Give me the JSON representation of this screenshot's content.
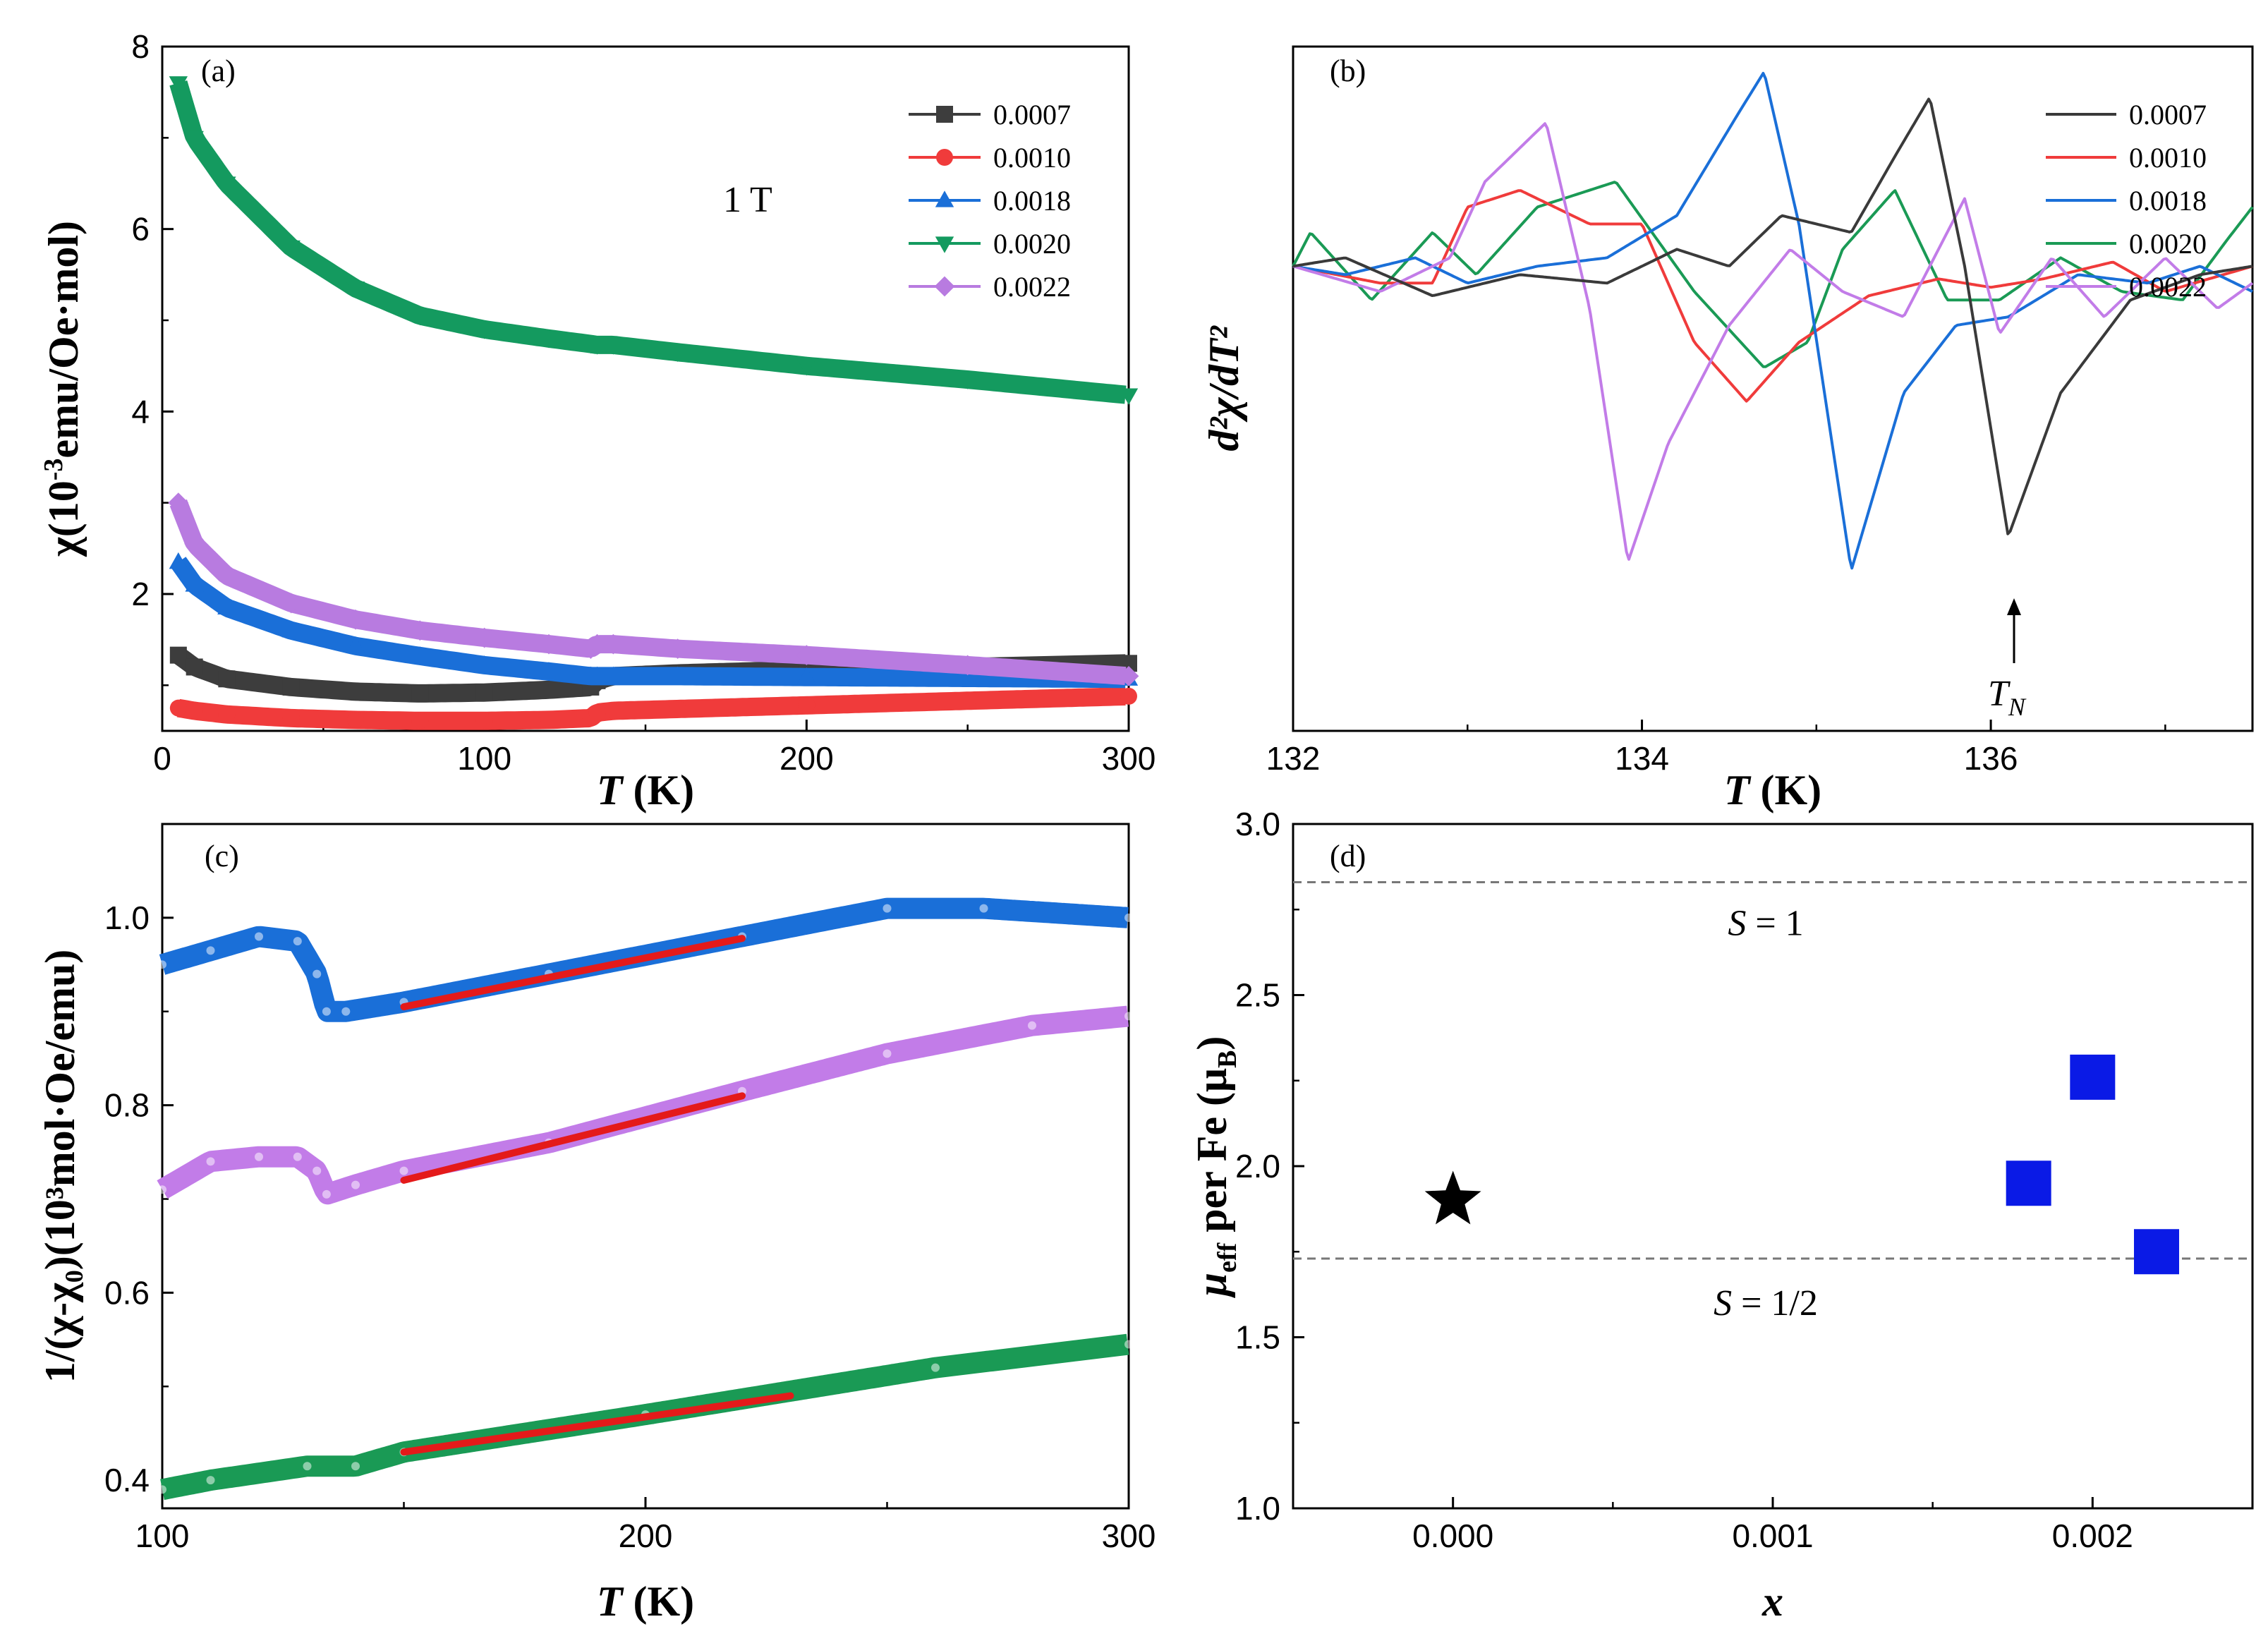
{
  "chart_data": [
    {
      "id": "a",
      "type": "scatter",
      "panel_label": "(a)",
      "annotation": "1 T",
      "xlabel_italic": "T",
      "xlabel_rest": " (K)",
      "ylabel_main": "χ(10",
      "ylabel_sup": "-3",
      "ylabel_tail": "emu/Oe·mol)",
      "xlim": [
        0,
        300
      ],
      "ylim": [
        0.5,
        8
      ],
      "xticks": [
        0,
        100,
        200,
        300
      ],
      "xtick_labels": [
        "0",
        "100",
        "200",
        "300"
      ],
      "yticks": [
        2,
        4,
        6,
        8
      ],
      "ytick_labels": [
        "2",
        "4",
        "6",
        "8"
      ],
      "legend": "top-right",
      "series": [
        {
          "name": "0.0007",
          "color": "#3d3d3d",
          "marker": "square",
          "x": [
            5,
            10,
            20,
            40,
            60,
            80,
            100,
            120,
            133,
            135,
            140,
            160,
            200,
            250,
            300
          ],
          "y": [
            1.33,
            1.2,
            1.07,
            0.98,
            0.93,
            0.91,
            0.92,
            0.95,
            0.98,
            1.05,
            1.1,
            1.13,
            1.17,
            1.2,
            1.24
          ]
        },
        {
          "name": "0.0010",
          "color": "#f03b3b",
          "marker": "circle",
          "x": [
            5,
            10,
            20,
            40,
            60,
            80,
            100,
            120,
            133,
            135,
            140,
            160,
            200,
            250,
            300
          ],
          "y": [
            0.75,
            0.72,
            0.68,
            0.64,
            0.62,
            0.61,
            0.61,
            0.62,
            0.64,
            0.7,
            0.72,
            0.74,
            0.78,
            0.83,
            0.88
          ]
        },
        {
          "name": "0.0018",
          "color": "#1a6fd8",
          "marker": "triangle-up",
          "x": [
            5,
            10,
            20,
            40,
            60,
            80,
            100,
            120,
            133,
            135,
            140,
            160,
            200,
            250,
            300
          ],
          "y": [
            2.35,
            2.1,
            1.85,
            1.6,
            1.43,
            1.32,
            1.22,
            1.15,
            1.1,
            1.1,
            1.1,
            1.1,
            1.09,
            1.08,
            1.07
          ]
        },
        {
          "name": "0.0020",
          "color": "#149a5f",
          "marker": "triangle-down",
          "x": [
            5,
            10,
            20,
            40,
            60,
            80,
            100,
            120,
            133,
            135,
            140,
            160,
            200,
            250,
            300
          ],
          "y": [
            7.6,
            7.0,
            6.5,
            5.8,
            5.35,
            5.05,
            4.9,
            4.8,
            4.74,
            4.73,
            4.73,
            4.65,
            4.5,
            4.35,
            4.18
          ]
        },
        {
          "name": "0.0022",
          "color": "#b87be0",
          "marker": "diamond",
          "x": [
            5,
            10,
            20,
            40,
            60,
            80,
            100,
            120,
            133,
            135,
            140,
            160,
            200,
            250,
            300
          ],
          "y": [
            3.0,
            2.55,
            2.2,
            1.9,
            1.72,
            1.6,
            1.52,
            1.45,
            1.4,
            1.45,
            1.45,
            1.4,
            1.33,
            1.22,
            1.1
          ]
        }
      ]
    },
    {
      "id": "b",
      "type": "line",
      "panel_label": "(b)",
      "annotation": "T",
      "annotation_sub": "N",
      "xlabel_italic": "T",
      "xlabel_rest": " (K)",
      "ylabel": "d²χ/dT²",
      "xlim": [
        132,
        137.5
      ],
      "ylim": [
        -5.5,
        2.6
      ],
      "xticks": [
        132,
        134,
        136
      ],
      "xtick_labels": [
        "132",
        "134",
        "136"
      ],
      "yticks": [],
      "legend": "top-right",
      "series": [
        {
          "name": "0.0007",
          "color": "#3a3a3a",
          "x": [
            132.0,
            132.3,
            132.8,
            133.3,
            133.8,
            134.2,
            134.5,
            134.8,
            135.2,
            135.45,
            135.65,
            135.85,
            136.1,
            136.4,
            136.8,
            137.2,
            137.5
          ],
          "y": [
            0.0,
            0.1,
            -0.35,
            -0.1,
            -0.2,
            0.2,
            0.0,
            0.6,
            0.4,
            1.3,
            2.0,
            0.0,
            -3.2,
            -1.5,
            -0.4,
            -0.1,
            0.0
          ]
        },
        {
          "name": "0.0010",
          "color": "#f03b3b",
          "x": [
            132.0,
            132.5,
            132.8,
            133.0,
            133.3,
            133.7,
            134.0,
            134.3,
            134.6,
            134.9,
            135.3,
            135.7,
            136.0,
            136.3,
            136.7,
            137.0,
            137.5
          ],
          "y": [
            0.0,
            -0.2,
            -0.2,
            0.7,
            0.9,
            0.5,
            0.5,
            -0.9,
            -1.6,
            -0.9,
            -0.35,
            -0.15,
            -0.25,
            -0.15,
            0.05,
            -0.3,
            0.0
          ]
        },
        {
          "name": "0.0018",
          "color": "#1a6fd8",
          "x": [
            132.0,
            132.3,
            132.7,
            133.0,
            133.4,
            133.8,
            134.2,
            134.55,
            134.7,
            134.9,
            135.2,
            135.5,
            135.8,
            136.1,
            136.5,
            136.9,
            137.2,
            137.5
          ],
          "y": [
            0.0,
            -0.1,
            0.1,
            -0.2,
            0.0,
            0.1,
            0.6,
            1.8,
            2.3,
            0.5,
            -3.6,
            -1.5,
            -0.7,
            -0.6,
            -0.1,
            -0.2,
            0.0,
            -0.3
          ]
        },
        {
          "name": "0.0020",
          "color": "#1a9a55",
          "x": [
            132.0,
            132.1,
            132.45,
            132.8,
            133.05,
            133.4,
            133.85,
            134.3,
            134.7,
            134.95,
            135.15,
            135.45,
            135.75,
            136.05,
            136.4,
            136.75,
            137.1,
            137.35,
            137.5
          ],
          "y": [
            0.0,
            0.4,
            -0.4,
            0.4,
            -0.1,
            0.7,
            1.0,
            -0.3,
            -1.2,
            -0.9,
            0.2,
            0.9,
            -0.4,
            -0.4,
            0.1,
            -0.3,
            -0.4,
            0.3,
            0.7
          ]
        },
        {
          "name": "0.0022",
          "color": "#c27ce8",
          "x": [
            132.0,
            132.5,
            132.9,
            133.1,
            133.45,
            133.7,
            133.92,
            134.15,
            134.5,
            134.85,
            135.15,
            135.5,
            135.85,
            136.05,
            136.35,
            136.65,
            137.0,
            137.3,
            137.5
          ],
          "y": [
            0.0,
            -0.3,
            0.1,
            1.0,
            1.7,
            -0.5,
            -3.5,
            -2.1,
            -0.7,
            0.2,
            -0.3,
            -0.6,
            0.8,
            -0.8,
            0.1,
            -0.6,
            0.1,
            -0.5,
            -0.2
          ]
        }
      ]
    },
    {
      "id": "c",
      "type": "scatter",
      "panel_label": "(c)",
      "xlabel_italic": "T",
      "xlabel_rest": " (K)",
      "ylabel": "1/(χ-χ₀)(10³mol·Oe/emu)",
      "xlim": [
        100,
        300
      ],
      "ylim": [
        0.37,
        1.1
      ],
      "xticks": [
        100,
        200,
        300
      ],
      "xtick_labels": [
        "100",
        "200",
        "300"
      ],
      "yticks": [
        0.4,
        0.6,
        0.8,
        1.0
      ],
      "ytick_labels": [
        "0.4",
        "0.6",
        "0.8",
        "1.0"
      ],
      "series": [
        {
          "name": "0.0018",
          "color": "#1a6fd8",
          "x": [
            100,
            110,
            120,
            128,
            132,
            134,
            138,
            150,
            180,
            220,
            250,
            270,
            300
          ],
          "y": [
            0.95,
            0.965,
            0.98,
            0.975,
            0.94,
            0.9,
            0.9,
            0.91,
            0.94,
            0.98,
            1.01,
            1.01,
            1.0
          ]
        },
        {
          "name": "0.0022",
          "color": "#c27ce8",
          "x": [
            100,
            110,
            120,
            128,
            132,
            134,
            140,
            150,
            180,
            220,
            250,
            280,
            300
          ],
          "y": [
            0.71,
            0.74,
            0.745,
            0.745,
            0.73,
            0.705,
            0.715,
            0.73,
            0.76,
            0.815,
            0.855,
            0.885,
            0.895
          ]
        },
        {
          "name": "0.0020",
          "color": "#1a9a55",
          "x": [
            100,
            110,
            130,
            140,
            150,
            200,
            260,
            300
          ],
          "y": [
            0.39,
            0.4,
            0.415,
            0.415,
            0.43,
            0.47,
            0.52,
            0.545
          ]
        }
      ],
      "fits": [
        {
          "color": "#e41a1a",
          "x": [
            150,
            220
          ],
          "y": [
            0.905,
            0.978
          ]
        },
        {
          "color": "#e41a1a",
          "x": [
            150,
            220
          ],
          "y": [
            0.72,
            0.81
          ]
        },
        {
          "color": "#e41a1a",
          "x": [
            150,
            230
          ],
          "y": [
            0.43,
            0.49
          ]
        }
      ]
    },
    {
      "id": "d",
      "type": "scatter",
      "panel_label": "(d)",
      "xlabel": "x",
      "ylabel_main": "μ",
      "ylabel_sub": "eff",
      "ylabel_mid": " per Fe (μ",
      "ylabel_sub2": "B",
      "ylabel_end": ")",
      "xlim": [
        -0.0005,
        0.0025
      ],
      "ylim": [
        1.0,
        3.0
      ],
      "xticks": [
        0.0,
        0.001,
        0.002
      ],
      "xtick_labels": [
        "0.000",
        "0.001",
        "0.002"
      ],
      "yticks": [
        1.0,
        1.5,
        2.0,
        2.5,
        3.0
      ],
      "ytick_labels": [
        "1.0",
        "1.5",
        "2.0",
        "2.5",
        "3.0"
      ],
      "reference_lines": [
        {
          "y": 2.83,
          "label": "S = 1",
          "label_italic": "S",
          "label_rest": " = 1"
        },
        {
          "y": 1.73,
          "label": "S = 1/2",
          "label_italic": "S",
          "label_rest": " = 1/2"
        }
      ],
      "series": [
        {
          "marker": "star",
          "color": "#000000",
          "x": [
            0.0
          ],
          "y": [
            1.9
          ]
        },
        {
          "marker": "square",
          "color": "#0a1ae6",
          "x": [
            0.0018,
            0.002,
            0.0022
          ],
          "y": [
            1.95,
            2.26,
            1.75
          ]
        }
      ]
    }
  ]
}
